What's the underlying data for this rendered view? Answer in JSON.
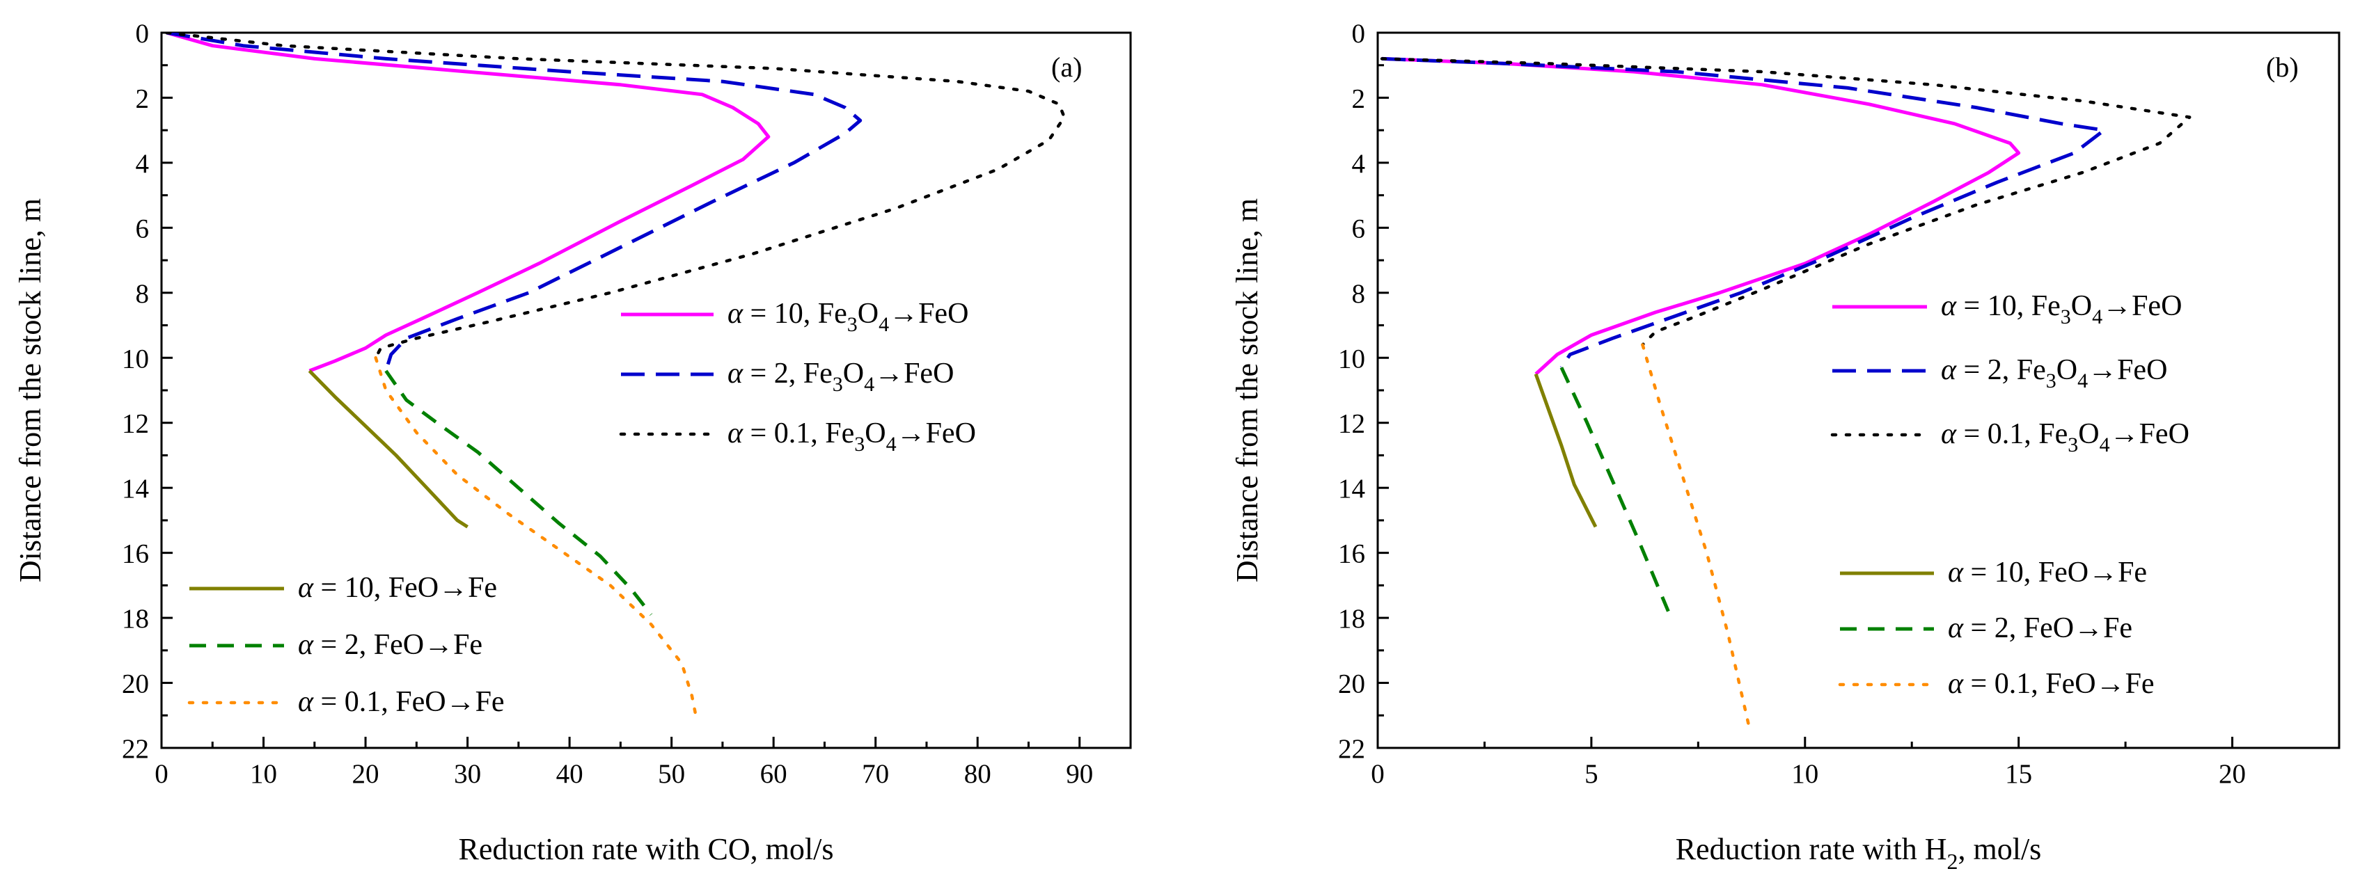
{
  "chart_data": [
    {
      "type": "line",
      "panel_label": "(a)",
      "xlabel": "Reduction rate with CO, mol/s",
      "xlabel_sub": "",
      "xlabel_tail": "",
      "ylabel": "Distance from the stock line, m",
      "xlim": [
        0,
        95
      ],
      "ylim": [
        0,
        22
      ],
      "y_inverted": true,
      "xticks": [
        0,
        10,
        20,
        30,
        40,
        50,
        60,
        70,
        80,
        90
      ],
      "yticks": [
        0,
        2,
        4,
        6,
        8,
        10,
        12,
        14,
        16,
        18,
        20,
        22
      ],
      "series": [
        {
          "name": "α = 10, Fe3O4→FeO",
          "legend": {
            "alpha": "10",
            "reaction": "Fe3O4"
          },
          "color": "#ff00ff",
          "dash": "solid",
          "points": [
            [
              0.5,
              0
            ],
            [
              5,
              0.4
            ],
            [
              15,
              0.8
            ],
            [
              30,
              1.2
            ],
            [
              45,
              1.6
            ],
            [
              53,
              1.9
            ],
            [
              56,
              2.3
            ],
            [
              58.5,
              2.8
            ],
            [
              59.5,
              3.2
            ],
            [
              57,
              3.9
            ],
            [
              52,
              4.7
            ],
            [
              45,
              5.8
            ],
            [
              37,
              7.1
            ],
            [
              31,
              8.0
            ],
            [
              25.5,
              8.8
            ],
            [
              22,
              9.3
            ],
            [
              20,
              9.7
            ],
            [
              17,
              10.1
            ],
            [
              14.5,
              10.4
            ]
          ]
        },
        {
          "name": "α = 2, Fe3O4→FeO",
          "legend": {
            "alpha": "2",
            "reaction": "Fe3O4"
          },
          "color": "#0000cc",
          "dash": "long",
          "points": [
            [
              0.5,
              0
            ],
            [
              8,
              0.4
            ],
            [
              22,
              0.8
            ],
            [
              40,
              1.2
            ],
            [
              55,
              1.5
            ],
            [
              64,
              1.9
            ],
            [
              67,
              2.3
            ],
            [
              68.5,
              2.7
            ],
            [
              67,
              3.1
            ],
            [
              62,
              4.0
            ],
            [
              54,
              5.2
            ],
            [
              45,
              6.6
            ],
            [
              36,
              8.0
            ],
            [
              29,
              8.8
            ],
            [
              24,
              9.4
            ],
            [
              22.5,
              9.9
            ],
            [
              22,
              10.4
            ]
          ]
        },
        {
          "name": "α = 0.1, Fe3O4→FeO",
          "legend": {
            "alpha": "0.1",
            "reaction": "Fe3O4"
          },
          "color": "#000000",
          "dash": "dot",
          "points": [
            [
              0.5,
              0
            ],
            [
              12,
              0.4
            ],
            [
              35,
              0.8
            ],
            [
              60,
              1.1
            ],
            [
              78,
              1.5
            ],
            [
              85,
              1.8
            ],
            [
              88,
              2.2
            ],
            [
              88.5,
              2.6
            ],
            [
              87,
              3.3
            ],
            [
              82,
              4.2
            ],
            [
              72,
              5.4
            ],
            [
              58,
              6.8
            ],
            [
              44,
              8.0
            ],
            [
              32,
              8.9
            ],
            [
              25,
              9.4
            ],
            [
              21.5,
              9.7
            ],
            [
              21,
              10.0
            ]
          ]
        },
        {
          "name": "α = 10, FeO→Fe",
          "legend": {
            "alpha": "10",
            "reaction": "FeO"
          },
          "color": "#808000",
          "dash": "solid",
          "points": [
            [
              14.5,
              10.4
            ],
            [
              17,
              11.2
            ],
            [
              20,
              12.1
            ],
            [
              23,
              13.0
            ],
            [
              26,
              14.0
            ],
            [
              29,
              15.0
            ],
            [
              30,
              15.2
            ]
          ]
        },
        {
          "name": "α = 2, FeO→Fe",
          "legend": {
            "alpha": "2",
            "reaction": "FeO"
          },
          "color": "#008000",
          "dash": "dash",
          "points": [
            [
              22,
              10.4
            ],
            [
              24,
              11.3
            ],
            [
              27,
              12.0
            ],
            [
              31,
              12.9
            ],
            [
              35,
              14.0
            ],
            [
              39,
              15.1
            ],
            [
              43,
              16.1
            ],
            [
              46,
              17.1
            ],
            [
              48,
              17.9
            ]
          ]
        },
        {
          "name": "α = 0.1, FeO→Fe",
          "legend": {
            "alpha": "0.1",
            "reaction": "FeO"
          },
          "color": "#ff8c00",
          "dash": "dot",
          "points": [
            [
              21,
              10.0
            ],
            [
              22,
              11.0
            ],
            [
              25,
              12.3
            ],
            [
              29,
              13.6
            ],
            [
              34,
              14.8
            ],
            [
              39,
              15.9
            ],
            [
              44,
              17.0
            ],
            [
              48,
              18.2
            ],
            [
              51,
              19.4
            ],
            [
              52,
              20.4
            ],
            [
              52.5,
              21.2
            ]
          ]
        }
      ]
    },
    {
      "type": "line",
      "panel_label": "(b)",
      "xlabel": "Reduction rate with H",
      "xlabel_sub": "2",
      "xlabel_tail": ", mol/s",
      "ylabel": "Distance from the stock line, m",
      "xlim": [
        0,
        22.5
      ],
      "ylim": [
        0,
        22
      ],
      "y_inverted": true,
      "xticks": [
        0,
        5,
        10,
        15,
        20
      ],
      "yticks": [
        0,
        2,
        4,
        6,
        8,
        10,
        12,
        14,
        16,
        18,
        20,
        22
      ],
      "series": [
        {
          "name": "α = 10, Fe3O4→FeO",
          "legend": {
            "alpha": "10",
            "reaction": "Fe3O4"
          },
          "color": "#ff00ff",
          "dash": "solid",
          "points": [
            [
              0.1,
              0.8
            ],
            [
              3,
              0.95
            ],
            [
              6,
              1.2
            ],
            [
              9,
              1.6
            ],
            [
              11.5,
              2.2
            ],
            [
              13.5,
              2.8
            ],
            [
              14.8,
              3.4
            ],
            [
              15,
              3.7
            ],
            [
              14.3,
              4.3
            ],
            [
              13,
              5.2
            ],
            [
              11.5,
              6.2
            ],
            [
              10,
              7.1
            ],
            [
              8,
              8.0
            ],
            [
              6.5,
              8.6
            ],
            [
              5,
              9.3
            ],
            [
              4.2,
              9.9
            ],
            [
              3.7,
              10.5
            ]
          ]
        },
        {
          "name": "α = 2, Fe3O4→FeO",
          "legend": {
            "alpha": "2",
            "reaction": "Fe3O4"
          },
          "color": "#0000cc",
          "dash": "long",
          "points": [
            [
              0.1,
              0.8
            ],
            [
              3,
              0.95
            ],
            [
              7,
              1.2
            ],
            [
              11,
              1.7
            ],
            [
              14,
              2.3
            ],
            [
              16,
              2.8
            ],
            [
              17,
              3.0
            ],
            [
              16.3,
              3.7
            ],
            [
              14.5,
              4.6
            ],
            [
              12.5,
              5.7
            ],
            [
              10.5,
              6.9
            ],
            [
              8.5,
              8.0
            ],
            [
              7,
              8.7
            ],
            [
              5.5,
              9.4
            ],
            [
              4.5,
              9.9
            ],
            [
              4.3,
              10.3
            ]
          ]
        },
        {
          "name": "α = 0.1, Fe3O4→FeO",
          "legend": {
            "alpha": "0.1",
            "reaction": "Fe3O4"
          },
          "color": "#000000",
          "dash": "dot",
          "points": [
            [
              0.1,
              0.8
            ],
            [
              4,
              0.95
            ],
            [
              9,
              1.2
            ],
            [
              13,
              1.6
            ],
            [
              16.5,
              2.1
            ],
            [
              19,
              2.6
            ],
            [
              18.3,
              3.4
            ],
            [
              16.5,
              4.3
            ],
            [
              14,
              5.3
            ],
            [
              11.5,
              6.5
            ],
            [
              9,
              7.9
            ],
            [
              7.5,
              8.7
            ],
            [
              6.5,
              9.2
            ],
            [
              6.2,
              9.6
            ]
          ]
        },
        {
          "name": "α = 10, FeO→Fe",
          "legend": {
            "alpha": "10",
            "reaction": "FeO"
          },
          "color": "#808000",
          "dash": "solid",
          "points": [
            [
              3.7,
              10.5
            ],
            [
              4,
              11.6
            ],
            [
              4.3,
              12.7
            ],
            [
              4.6,
              13.9
            ],
            [
              5.1,
              15.2
            ]
          ]
        },
        {
          "name": "α = 2, FeO→Fe",
          "legend": {
            "alpha": "2",
            "reaction": "FeO"
          },
          "color": "#008000",
          "dash": "dash",
          "points": [
            [
              4.3,
              10.3
            ],
            [
              4.9,
              12.0
            ],
            [
              5.5,
              13.8
            ],
            [
              6.1,
              15.6
            ],
            [
              6.8,
              17.8
            ]
          ]
        },
        {
          "name": "α = 0.1, FeO→Fe",
          "legend": {
            "alpha": "0.1",
            "reaction": "FeO"
          },
          "color": "#ff8c00",
          "dash": "dot",
          "points": [
            [
              6.2,
              9.6
            ],
            [
              6.6,
              11.4
            ],
            [
              7.1,
              13.5
            ],
            [
              7.7,
              16.0
            ],
            [
              8.2,
              18.5
            ],
            [
              8.7,
              21.4
            ]
          ]
        }
      ]
    }
  ]
}
